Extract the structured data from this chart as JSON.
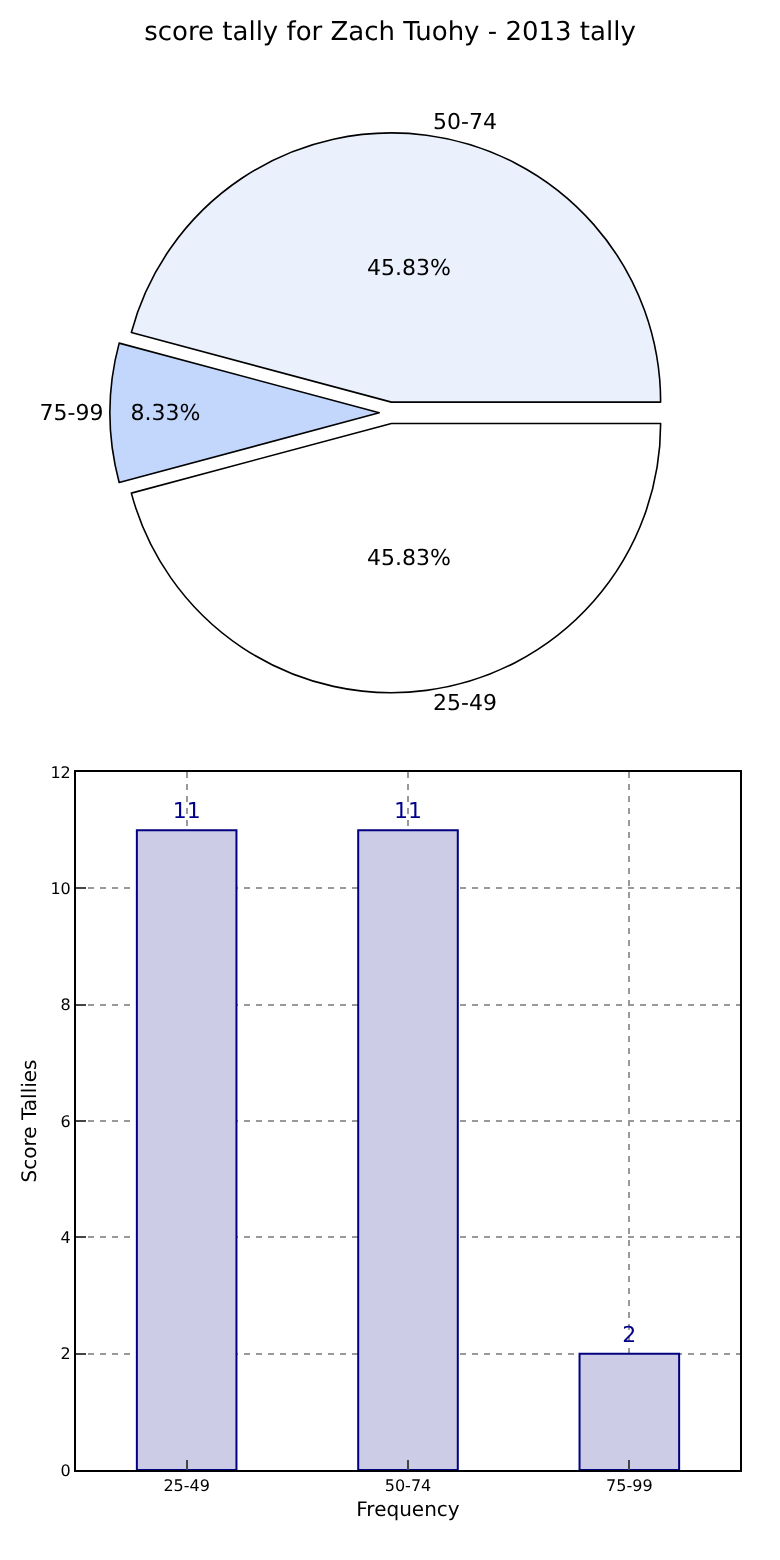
{
  "chart_data": [
    {
      "type": "pie",
      "title": "score tally for Zach Tuohy - 2013 tally",
      "categories": [
        "25-49",
        "50-74",
        "75-99"
      ],
      "values": [
        45.83,
        45.83,
        8.33
      ],
      "value_labels": [
        "45.83%",
        "45.83%",
        "8.33%"
      ],
      "colors": [
        "#ffffff",
        "#eaf0fc",
        "#c3d7fd"
      ],
      "legend": false
    },
    {
      "type": "bar",
      "categories": [
        "25-49",
        "50-74",
        "75-99"
      ],
      "values": [
        11,
        11,
        2
      ],
      "color": "#cccce6",
      "xlabel": "Frequency",
      "ylabel": "Score Tallies",
      "ylim": [
        0,
        12
      ],
      "yticks": [
        0,
        2,
        4,
        6,
        8,
        10,
        12
      ],
      "grid": true,
      "data_labels": true,
      "legend": false
    }
  ]
}
